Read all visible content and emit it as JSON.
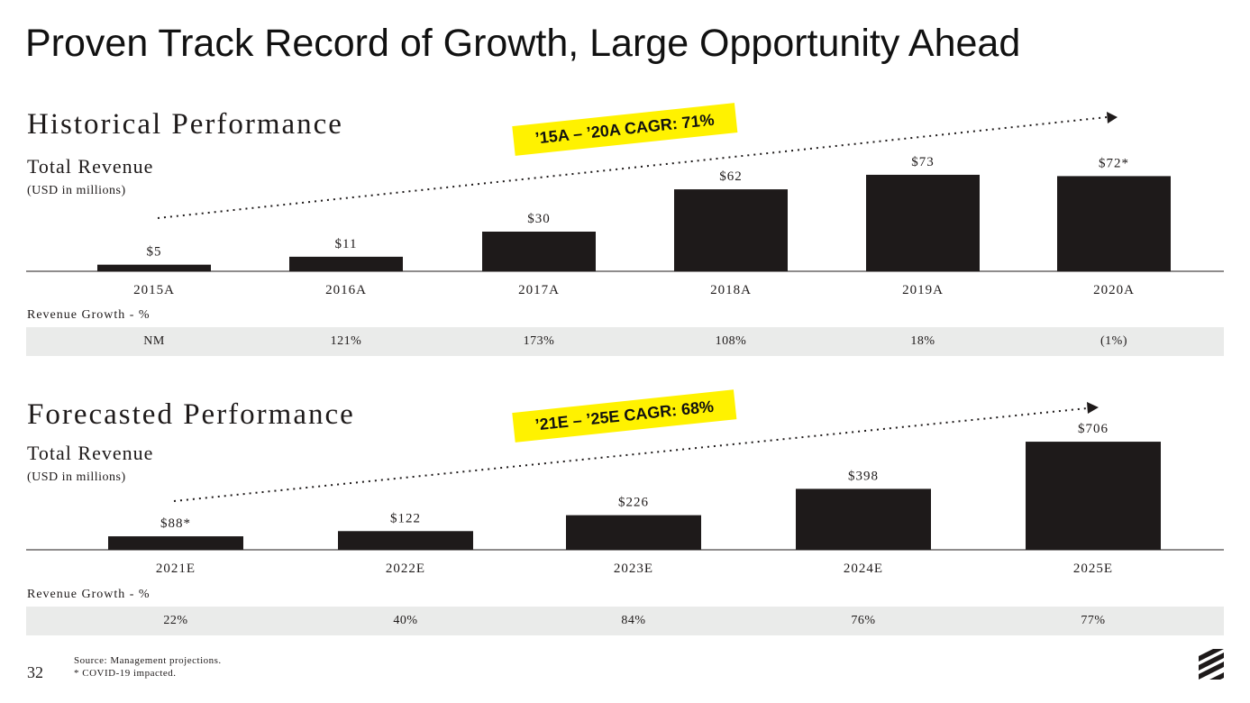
{
  "title": "Proven Track Record of Growth, Large Opportunity Ahead",
  "historical": {
    "section_title": "Historical Performance",
    "subtitle": "Total Revenue",
    "units": "(USD in millions)",
    "cagr_label": "’15A – ’20A CAGR: 71%",
    "growth_label": "Revenue Growth - %",
    "growth": [
      "NM",
      "121%",
      "173%",
      "108%",
      "18%",
      "(1%)"
    ]
  },
  "forecast": {
    "section_title": "Forecasted Performance",
    "subtitle": "Total Revenue",
    "units": "(USD in millions)",
    "cagr_label": "’21E – ’25E CAGR: 68%",
    "growth_label": "Revenue Growth - %",
    "growth": [
      "22%",
      "40%",
      "84%",
      "76%",
      "77%"
    ]
  },
  "footnotes": [
    "Source: Management projections.",
    "* COVID-19 impacted."
  ],
  "page_number": "32",
  "colors": {
    "bar": "#1e1a1a",
    "highlight": "#fff200",
    "band": "#eaebea"
  },
  "icons": {
    "logo": "layered-stripes-logo-icon",
    "trend_arrow": "dotted-trend-arrow-icon"
  },
  "chart_data": [
    {
      "type": "bar",
      "title": "Total Revenue",
      "ylabel": "(USD in millions)",
      "categories": [
        "2015A",
        "2016A",
        "2017A",
        "2018A",
        "2019A",
        "2020A"
      ],
      "values": [
        5,
        11,
        30,
        62,
        73,
        72
      ],
      "data_labels": [
        "$5",
        "$11",
        "$30",
        "$62",
        "$73",
        "$72*"
      ],
      "ylim": [
        0,
        75
      ],
      "grid": false
    },
    {
      "type": "bar",
      "title": "Total Revenue",
      "ylabel": "(USD in millions)",
      "categories": [
        "2021E",
        "2022E",
        "2023E",
        "2024E",
        "2025E"
      ],
      "values": [
        88,
        122,
        226,
        398,
        706
      ],
      "data_labels": [
        "$88*",
        "$122",
        "$226",
        "$398",
        "$706"
      ],
      "ylim": [
        0,
        730
      ],
      "grid": false
    }
  ]
}
